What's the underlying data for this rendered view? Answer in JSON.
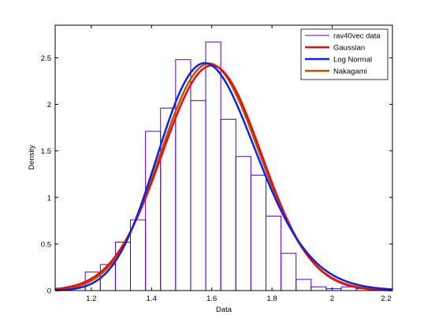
{
  "chart_data": {
    "type": "histogram-with-fitted-curves",
    "xlabel": "Data",
    "ylabel": "Density",
    "xlim": [
      1.08,
      2.2
    ],
    "ylim": [
      0,
      2.85
    ],
    "xticks": [
      1.2,
      1.4,
      1.6,
      1.8,
      2,
      2.2
    ],
    "xtick_labels": [
      "1.2",
      "1.4",
      "1.6",
      "1.8",
      "2",
      "2.2"
    ],
    "yticks": [
      0,
      0.5,
      1,
      1.5,
      2,
      2.5
    ],
    "ytick_labels": [
      "0",
      "0.5",
      "1",
      "1.5",
      "2",
      "2.5"
    ],
    "grid": false,
    "legend_position": "top-right",
    "histogram": {
      "name": "rav40vec data",
      "color": "#5500bb",
      "bin_edges": [
        1.08,
        1.13,
        1.18,
        1.23,
        1.28,
        1.33,
        1.38,
        1.43,
        1.48,
        1.53,
        1.58,
        1.63,
        1.68,
        1.73,
        1.78,
        1.83,
        1.88,
        1.93,
        1.98,
        2.03,
        2.08,
        2.13,
        2.18
      ],
      "values": [
        0.02,
        0.04,
        0.2,
        0.28,
        0.52,
        0.76,
        1.71,
        1.96,
        2.48,
        2.04,
        2.67,
        1.84,
        1.44,
        1.24,
        0.8,
        0.4,
        0.12,
        0.04,
        0.02,
        0.04,
        0.02,
        0.02
      ]
    },
    "series": [
      {
        "name": "Gaussian",
        "color": "#dd1111",
        "distribution": "normal",
        "mu": 1.6,
        "sigma": 0.165
      },
      {
        "name": "Log Normal",
        "color": "#1122dd",
        "distribution": "lognormal",
        "mu": 0.466,
        "sigma": 0.103
      },
      {
        "name": "Nakagami",
        "color": "#bb5500",
        "distribution": "nakagami",
        "mu": 1.6,
        "sigma": 0.163
      }
    ]
  }
}
